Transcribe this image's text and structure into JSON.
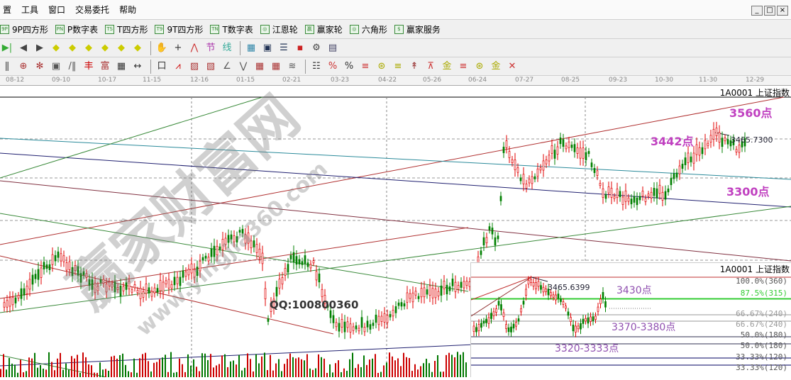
{
  "menu": [
    "置",
    "工具",
    "窗口",
    "交易委托",
    "帮助"
  ],
  "window_controls": [
    "_",
    "□",
    "×"
  ],
  "toolbar1": [
    {
      "icon": "9P",
      "label": "9P四方形"
    },
    {
      "icon": "PN",
      "label": "P数字表"
    },
    {
      "icon": "TS",
      "label": "T四方形"
    },
    {
      "icon": "T9",
      "label": "9T四方形"
    },
    {
      "icon": "TN",
      "label": "T数字表"
    },
    {
      "icon": "◎",
      "label": "江恩轮"
    },
    {
      "icon": "赢",
      "label": "赢家轮"
    },
    {
      "icon": "◎",
      "label": "六角形"
    },
    {
      "icon": "$",
      "label": "赢家服务"
    }
  ],
  "toolbar2_icons": [
    "last-icon",
    "prev-icon",
    "next-icon",
    "left-diamond-icon",
    "right-diamond-icon",
    "expand-icon",
    "shrink-icon",
    "cross-diamond-icon",
    "up-down-icon",
    "hand-icon",
    "crosshair-icon",
    "line-icon",
    "section-icon",
    "pattern-icon",
    "calendar-icon",
    "calculator-icon",
    "notes-icon",
    "save-icon",
    "tools-icon",
    "print-icon"
  ],
  "toolbar3_icons": [
    "gann-icon",
    "circle-icon",
    "star-icon",
    "square-icon",
    "lines-icon",
    "symbol-icon",
    "symbol2-icon",
    "grid-icon",
    "measure-icon",
    "box-icon",
    "fan-icon",
    "fan-box-icon",
    "fan-box2-icon",
    "angle-icon",
    "zigzag-icon",
    "grid2-icon",
    "grid3-icon",
    "parallel-icon",
    "table-icon",
    "percent-fan-icon",
    "percent-icon",
    "percent-line-icon",
    "gold-icon",
    "gold-line-icon",
    "arrow-icon",
    "ruler-icon",
    "gold2-icon",
    "gold3-icon",
    "gold4-icon",
    "gold5-icon",
    "gold6-icon"
  ],
  "dates": [
    "08-12",
    "09-10",
    "10-17",
    "11-15",
    "12-16",
    "01-15",
    "02-21",
    "03-23",
    "04-22",
    "05-26",
    "06-24",
    "07-27",
    "08-25",
    "09-23",
    "10-30",
    "11-30",
    "12-29"
  ],
  "main_chart": {
    "symbol": "1A0001  上证指数",
    "annotations": {
      "a3560": "3560点",
      "a3442": "3442点",
      "a3300": "3300点"
    },
    "high_value": "3465.7300"
  },
  "inset_chart": {
    "symbol": "1A0001  上证指数",
    "high_value": "3465.6399",
    "annotations": {
      "a3430": "3430点",
      "a3370": "3370-3380点",
      "a3320": "3320-3333点"
    },
    "fib_levels": [
      "100.0%(360)",
      "87.5%(315)",
      "66.67%(240)",
      "66.67%(240)",
      "50.0%(180)",
      "50.0%(180)",
      "33.33%(120)",
      "33.33%(120)"
    ]
  },
  "watermark": {
    "brand": "赢家财富网",
    "url": "www.yingjia360.com",
    "qq": "QQ:100800360"
  },
  "colors": {
    "up": "#e00000",
    "down": "#008000",
    "annotation": "#c040c0"
  }
}
